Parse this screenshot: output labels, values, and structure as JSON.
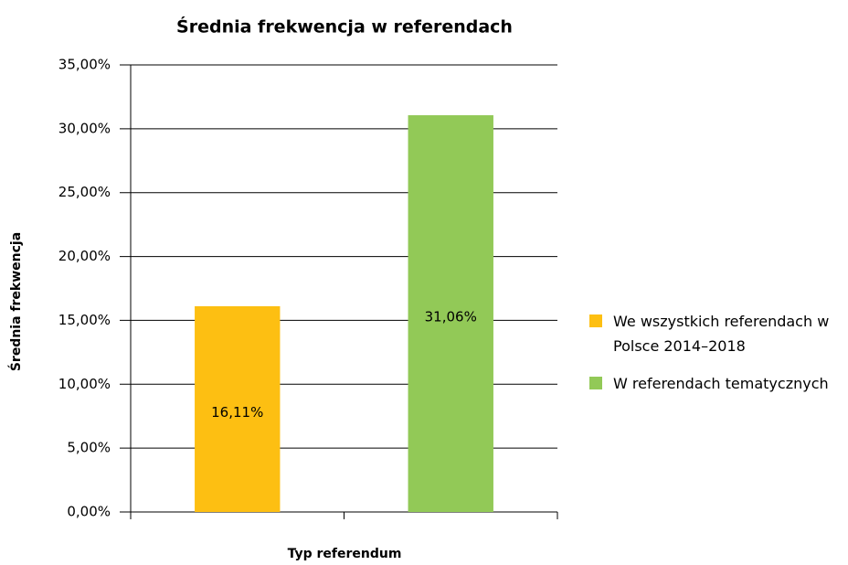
{
  "chart_data": {
    "type": "bar",
    "title": "Średnia frekwencja w referendach",
    "x_label": "Typ referendum",
    "y_label": "Średnia frekwencja",
    "categories": [
      null,
      null
    ],
    "series": [
      {
        "name": "We wszystkich referendach w Polsce 2014–2018",
        "color": "#fdbf12",
        "values": [
          16.11,
          null
        ],
        "value_labels": [
          "16,11%",
          null
        ]
      },
      {
        "name": "W referendach tematycznych",
        "color": "#92c957",
        "values": [
          null,
          31.06
        ],
        "value_labels": [
          null,
          "31,06%"
        ]
      }
    ],
    "ylim": [
      0,
      35
    ],
    "yticks": [
      {
        "value": 0,
        "label": "0,00%"
      },
      {
        "value": 5,
        "label": "5,00%"
      },
      {
        "value": 10,
        "label": "10,00%"
      },
      {
        "value": 15,
        "label": "15,00%"
      },
      {
        "value": 20,
        "label": "20,00%"
      },
      {
        "value": 25,
        "label": "25,00%"
      },
      {
        "value": 30,
        "label": "30,00%"
      },
      {
        "value": 35,
        "label": "35,00%"
      }
    ],
    "grid": true,
    "legend": "right"
  }
}
